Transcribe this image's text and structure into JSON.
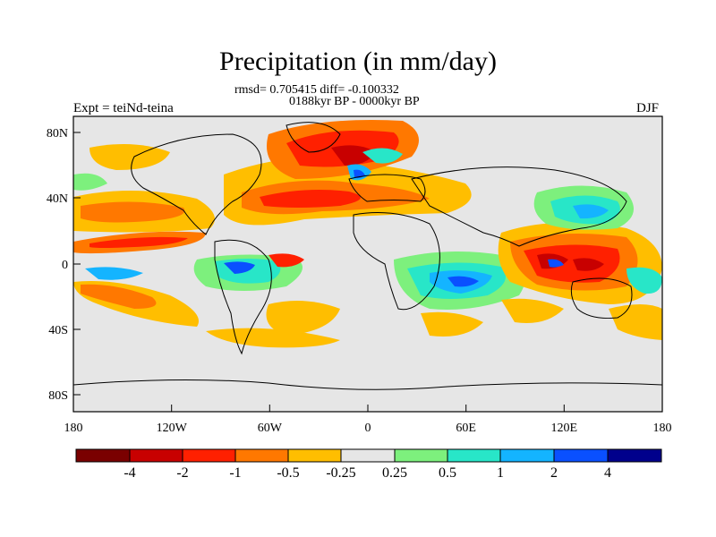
{
  "title": "Precipitation (in mm/day)",
  "stats": "rmsd= 0.705415 diff= -0.100332",
  "period": "0188kyr BP - 0000kyr BP",
  "experiment": "Expt = teiNd-teina",
  "season": "DJF",
  "axes": {
    "x_ticks": [
      "180",
      "120W",
      "60W",
      "0",
      "60E",
      "120E",
      "180"
    ],
    "y_ticks": [
      "80N",
      "40N",
      "0",
      "40S",
      "80S"
    ]
  },
  "colorbar": {
    "labels": [
      "-4",
      "-2",
      "-1",
      "-0.5",
      "-0.25",
      "0.25",
      "0.5",
      "1",
      "2",
      "4"
    ],
    "colors": [
      "#7a0000",
      "#c80000",
      "#ff2000",
      "#ff7800",
      "#ffbe00",
      "#e6e6e6",
      "#7df07d",
      "#28e6c8",
      "#14b4ff",
      "#0a50ff",
      "#00008c"
    ]
  }
}
